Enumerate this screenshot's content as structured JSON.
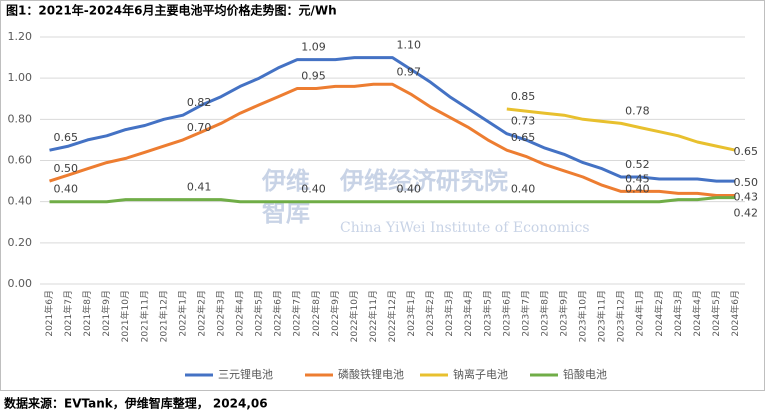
{
  "chart_data": {
    "type": "line",
    "title": "图1：2021年-2024年6月主要电池平均价格走势图：元/Wh",
    "source": "数据来源：EVTank，伊维智库整理， 2024,06",
    "watermark": [
      "伊维",
      "智库",
      "伊维经济研究院",
      "China YiWei Institute of Economics"
    ],
    "categories": [
      "2021年6月",
      "2021年7月",
      "2021年8月",
      "2021年9月",
      "2021年10月",
      "2021年11月",
      "2021年12月",
      "2022年1月",
      "2022年2月",
      "2022年3月",
      "2022年4月",
      "2022年5月",
      "2022年6月",
      "2022年7月",
      "2022年8月",
      "2022年9月",
      "2022年10月",
      "2022年11月",
      "2022年12月",
      "2023年1月",
      "2023年2月",
      "2023年3月",
      "2023年4月",
      "2023年5月",
      "2023年6月",
      "2023年7月",
      "2023年8月",
      "2023年9月",
      "2023年10月",
      "2023年11月",
      "2023年12月",
      "2024年1月",
      "2024年2月",
      "2024年3月",
      "2024年4月",
      "2024年5月",
      "2024年6月"
    ],
    "ylim": [
      0,
      1.2
    ],
    "yticks": [
      {
        "value": 0,
        "label": "0.00"
      },
      {
        "value": 0.2,
        "label": "0.20"
      },
      {
        "value": 0.4,
        "label": "0.40"
      },
      {
        "value": 0.6,
        "label": "0.60"
      },
      {
        "value": 0.8,
        "label": "0.80"
      },
      {
        "value": 1,
        "label": "1.00"
      },
      {
        "value": 1.2,
        "label": "1.20"
      }
    ],
    "grid": true,
    "legend": "bottom",
    "series": [
      {
        "name": "三元锂电池",
        "color": "#4472c4",
        "values": [
          0.65,
          0.67,
          0.7,
          0.72,
          0.75,
          0.77,
          0.8,
          0.82,
          0.87,
          0.91,
          0.96,
          1.0,
          1.05,
          1.09,
          1.09,
          1.09,
          1.1,
          1.1,
          1.1,
          1.04,
          0.98,
          0.91,
          0.85,
          0.79,
          0.73,
          0.7,
          0.66,
          0.63,
          0.59,
          0.56,
          0.52,
          0.52,
          0.51,
          0.51,
          0.51,
          0.5,
          0.5
        ],
        "value_labels": [
          "0.65",
          null,
          null,
          null,
          null,
          null,
          null,
          "0.82",
          null,
          null,
          null,
          null,
          null,
          "1.09",
          null,
          null,
          null,
          null,
          "1.10",
          null,
          null,
          null,
          null,
          null,
          "0.73",
          null,
          null,
          null,
          null,
          null,
          "0.52",
          null,
          null,
          null,
          null,
          null,
          "0.50"
        ]
      },
      {
        "name": "磷酸铁锂电池",
        "color": "#ed7d31",
        "values": [
          0.5,
          0.53,
          0.56,
          0.59,
          0.61,
          0.64,
          0.67,
          0.7,
          0.74,
          0.78,
          0.83,
          0.87,
          0.91,
          0.95,
          0.95,
          0.96,
          0.96,
          0.97,
          0.97,
          0.92,
          0.86,
          0.81,
          0.76,
          0.7,
          0.65,
          0.62,
          0.58,
          0.55,
          0.52,
          0.48,
          0.45,
          0.45,
          0.45,
          0.44,
          0.44,
          0.43,
          0.43
        ],
        "value_labels": [
          "0.50",
          null,
          null,
          null,
          null,
          null,
          null,
          "0.70",
          null,
          null,
          null,
          null,
          null,
          "0.95",
          null,
          null,
          null,
          null,
          "0.97",
          null,
          null,
          null,
          null,
          null,
          "0.65",
          null,
          null,
          null,
          null,
          null,
          "0.45",
          null,
          null,
          null,
          null,
          null,
          "0.43"
        ]
      },
      {
        "name": "钠离子电池",
        "color": "#e8c02e",
        "values": [
          null,
          null,
          null,
          null,
          null,
          null,
          null,
          null,
          null,
          null,
          null,
          null,
          null,
          null,
          null,
          null,
          null,
          null,
          null,
          null,
          null,
          null,
          null,
          null,
          0.85,
          0.84,
          0.83,
          0.82,
          0.8,
          0.79,
          0.78,
          0.76,
          0.74,
          0.72,
          0.69,
          0.67,
          0.65
        ],
        "value_labels": [
          null,
          null,
          null,
          null,
          null,
          null,
          null,
          null,
          null,
          null,
          null,
          null,
          null,
          null,
          null,
          null,
          null,
          null,
          null,
          null,
          null,
          null,
          null,
          null,
          "0.85",
          null,
          null,
          null,
          null,
          null,
          "0.78",
          null,
          null,
          null,
          null,
          null,
          "0.65"
        ]
      },
      {
        "name": "铅酸电池",
        "color": "#70ad47",
        "values": [
          0.4,
          0.4,
          0.4,
          0.4,
          0.41,
          0.41,
          0.41,
          0.41,
          0.41,
          0.41,
          0.4,
          0.4,
          0.4,
          0.4,
          0.4,
          0.4,
          0.4,
          0.4,
          0.4,
          0.4,
          0.4,
          0.4,
          0.4,
          0.4,
          0.4,
          0.4,
          0.4,
          0.4,
          0.4,
          0.4,
          0.4,
          0.4,
          0.4,
          0.41,
          0.41,
          0.42,
          0.42
        ],
        "value_labels": [
          "0.40",
          null,
          null,
          null,
          null,
          null,
          null,
          "0.41",
          null,
          null,
          null,
          null,
          null,
          "0.40",
          null,
          null,
          null,
          null,
          "0.40",
          null,
          null,
          null,
          null,
          null,
          "0.40",
          null,
          null,
          null,
          null,
          null,
          "0.40",
          null,
          null,
          null,
          null,
          null,
          "0.42"
        ]
      }
    ]
  }
}
